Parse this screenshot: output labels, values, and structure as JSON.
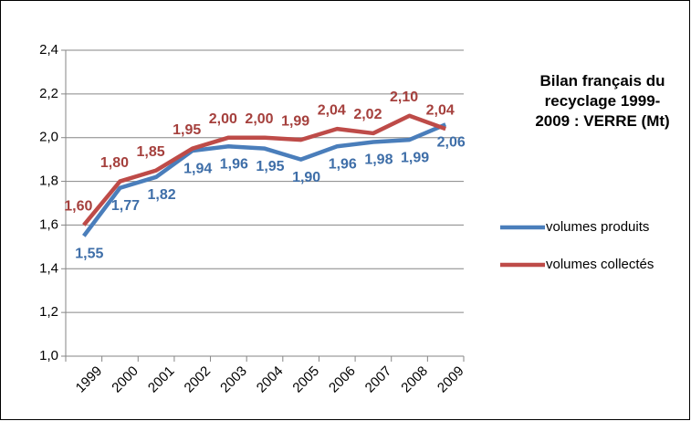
{
  "chart_data": {
    "type": "line",
    "title": "Bilan français du recyclage 1999-2009 : VERRE (Mt)",
    "categories": [
      "1999",
      "2000",
      "2001",
      "2002",
      "2003",
      "2004",
      "2005",
      "2006",
      "2007",
      "2008",
      "2009"
    ],
    "series": [
      {
        "name": "volumes produits",
        "color": "#4a7ebb",
        "label_color": "#3e6ea8",
        "values": [
          1.55,
          1.77,
          1.82,
          1.94,
          1.96,
          1.95,
          1.9,
          1.96,
          1.98,
          1.99,
          2.06
        ],
        "value_labels": [
          "1,55",
          "1,77",
          "1,82",
          "1,94",
          "1,96",
          "1,95",
          "1,90",
          "1,96",
          "1,98",
          "1,99",
          "2,06"
        ]
      },
      {
        "name": "volumes collectés",
        "color": "#be4b48",
        "label_color": "#a5403d",
        "values": [
          1.6,
          1.8,
          1.85,
          1.95,
          2.0,
          2.0,
          1.99,
          2.04,
          2.02,
          2.1,
          2.04
        ],
        "value_labels": [
          "1,60",
          "1,80",
          "1,85",
          "1,95",
          "2,00",
          "2,00",
          "1,99",
          "2,04",
          "2,02",
          "2,10",
          "2,04"
        ]
      }
    ],
    "ylim": [
      1.0,
      2.4
    ],
    "yticks": [
      {
        "value": 1.0,
        "label": "1,0"
      },
      {
        "value": 1.2,
        "label": "1,2"
      },
      {
        "value": 1.4,
        "label": "1,4"
      },
      {
        "value": 1.6,
        "label": "1,6"
      },
      {
        "value": 1.8,
        "label": "1,8"
      },
      {
        "value": 2.0,
        "label": "2,0"
      },
      {
        "value": 2.2,
        "label": "2,2"
      },
      {
        "value": 2.4,
        "label": "2,4"
      }
    ],
    "grid": true,
    "legend": "right"
  }
}
